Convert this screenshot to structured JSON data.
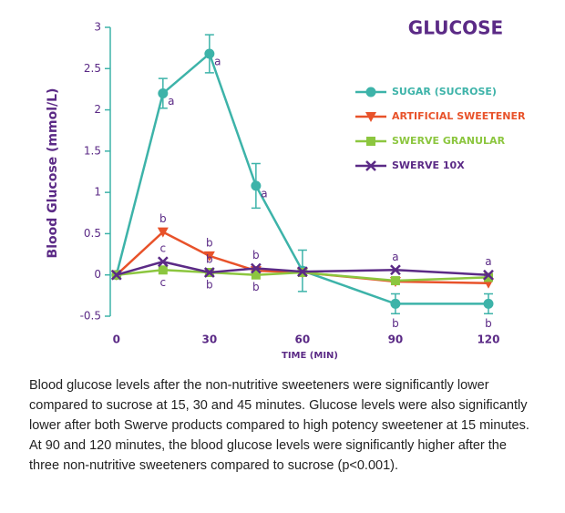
{
  "chart_data": {
    "type": "line",
    "title": "GLUCOSE",
    "y_label": "Blood Glucose (mmol/L)",
    "x_label": "TIME (MIN)",
    "x": [
      0,
      15,
      30,
      45,
      60,
      90,
      120
    ],
    "xlim": [
      -2,
      125
    ],
    "xticks": [
      0,
      30,
      60,
      90,
      120
    ],
    "ylim": [
      -0.5,
      3
    ],
    "yticks": [
      3,
      2.5,
      2,
      1.5,
      1,
      0.5,
      0,
      -0.5
    ],
    "legend": "upper right",
    "series": [
      {
        "name": "SUGAR (SUCROSE)",
        "color": "#3db3a9",
        "marker": "circle",
        "values": [
          0,
          2.2,
          2.68,
          1.08,
          0.05,
          -0.35,
          -0.35
        ],
        "errors": [
          0,
          0.18,
          0.23,
          0.27,
          0.25,
          0.12,
          0.12
        ],
        "labels": [
          null,
          "a",
          "a",
          "a",
          null,
          "b",
          "b"
        ]
      },
      {
        "name": "ARTIFICIAL SWEETENER",
        "color": "#e8522a",
        "marker": "triangle-down",
        "values": [
          0,
          0.52,
          0.23,
          0.05,
          0.03,
          -0.08,
          -0.1
        ],
        "labels": [
          null,
          "b",
          "b",
          null,
          null,
          null,
          null
        ]
      },
      {
        "name": "SWERVE GRANULAR",
        "color": "#8cc63f",
        "marker": "square",
        "values": [
          0,
          0.06,
          0.03,
          0,
          0.03,
          -0.07,
          -0.03
        ],
        "labels": [
          null,
          "c",
          "b",
          "b",
          null,
          null,
          null
        ]
      },
      {
        "name": "SWERVE 10X",
        "color": "#5b2a86",
        "marker": "x",
        "values": [
          0,
          0.16,
          0.03,
          0.08,
          0.04,
          0.06,
          0
        ],
        "labels": [
          null,
          "c",
          "b",
          "b",
          null,
          "a",
          "a"
        ]
      }
    ]
  },
  "caption": "Blood glucose levels after the non-nutritive sweeteners were significantly lower compared to sucrose at 15, 30 and 45 minutes. Glucose levels were also significantly lower after both Swerve products compared to high potency sweetener at 15 minutes. At 90 and 120 minutes, the blood glucose levels were significantly higher after the three non-nutritive sweeteners compared to sucrose (p<0.001)."
}
